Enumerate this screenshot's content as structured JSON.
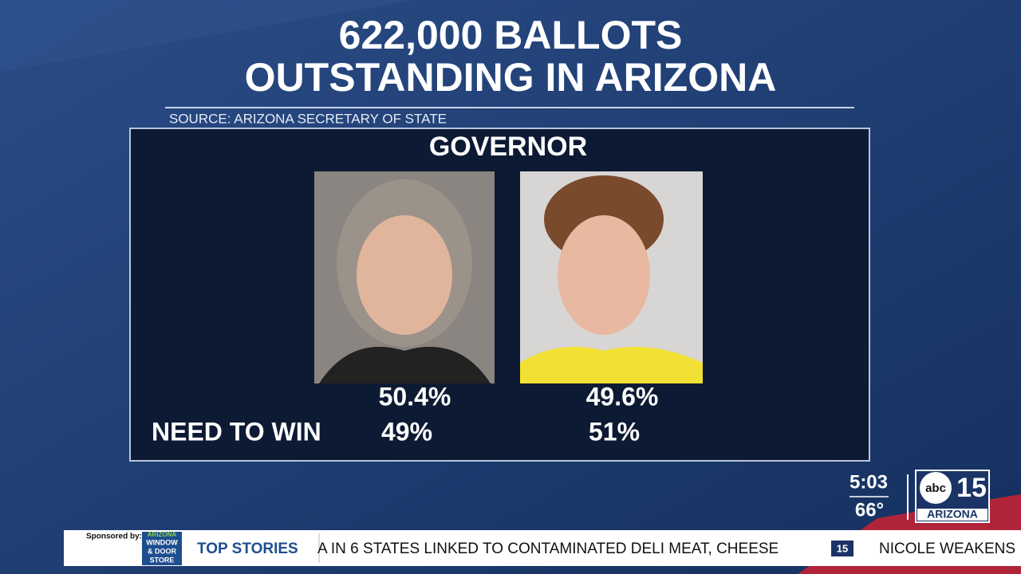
{
  "header": {
    "title_lines": [
      "622,000 BALLOTS",
      "OUTSTANDING IN ARIZONA"
    ],
    "source": "SOURCE: ARIZONA SECRETARY OF STATE"
  },
  "panel": {
    "title": "GOVERNOR",
    "need_label": "NEED TO WIN",
    "candidates": [
      {
        "share": "50.4%",
        "need": "49%"
      },
      {
        "share": "49.6%",
        "need": "51%"
      }
    ]
  },
  "bug": {
    "time": "5:03",
    "temperature": "66°",
    "network": "abc",
    "station_number": "15",
    "station_name": "ARIZONA"
  },
  "ticker": {
    "sponsor_label": "Sponsored by:",
    "sponsor_lines": [
      "ARIZONA",
      "WINDOW",
      "& DOOR",
      "STORE"
    ],
    "section": "TOP STORIES",
    "headlines": [
      "A IN 6 STATES LINKED TO CONTAMINATED DELI MEAT, CHEESE",
      "NICOLE WEAKENS"
    ],
    "mini_logo": "15"
  }
}
